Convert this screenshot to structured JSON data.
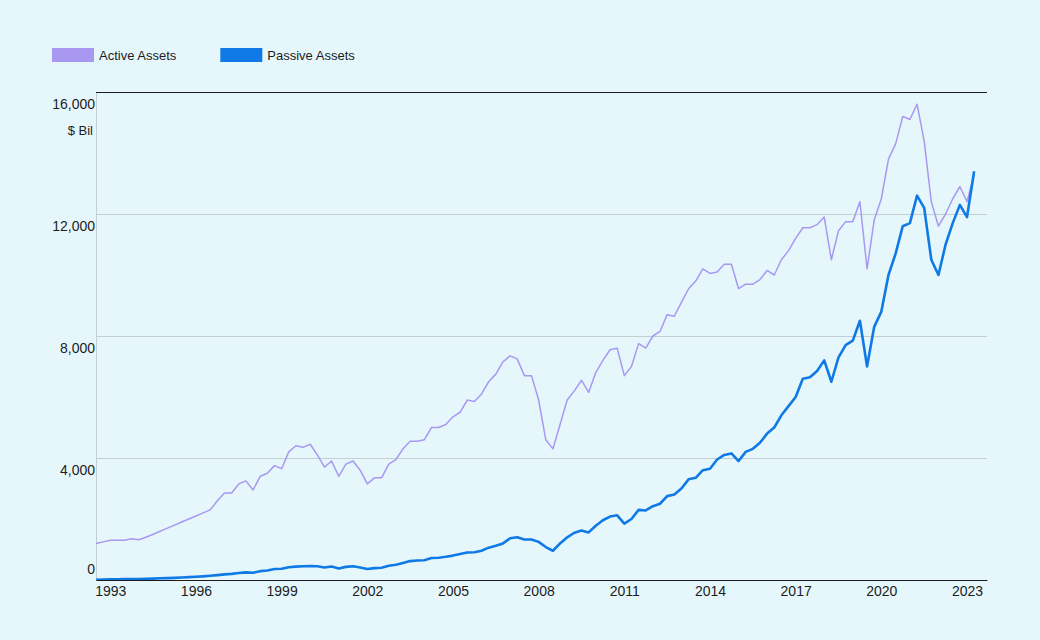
{
  "chart_data": {
    "type": "line",
    "ylabel": "$ Bil",
    "x": [
      1992.5,
      1992.75,
      1993,
      1993.25,
      1993.5,
      1993.75,
      1994,
      1994.25,
      1994.5,
      1994.75,
      1995,
      1995.25,
      1995.5,
      1995.75,
      1996,
      1996.25,
      1996.5,
      1996.75,
      1997,
      1997.25,
      1997.5,
      1997.75,
      1998,
      1998.25,
      1998.5,
      1998.75,
      1999,
      1999.25,
      1999.5,
      1999.75,
      2000,
      2000.25,
      2000.5,
      2000.75,
      2001,
      2001.25,
      2001.5,
      2001.75,
      2002,
      2002.25,
      2002.5,
      2002.75,
      2003,
      2003.25,
      2003.5,
      2003.75,
      2004,
      2004.25,
      2004.5,
      2004.75,
      2005,
      2005.25,
      2005.5,
      2005.75,
      2006,
      2006.25,
      2006.5,
      2006.75,
      2007,
      2007.25,
      2007.5,
      2007.75,
      2008,
      2008.25,
      2008.5,
      2008.75,
      2009,
      2009.25,
      2009.5,
      2009.75,
      2010,
      2010.25,
      2010.5,
      2010.75,
      2011,
      2011.25,
      2011.5,
      2011.75,
      2012,
      2012.25,
      2012.5,
      2012.75,
      2013,
      2013.25,
      2013.5,
      2013.75,
      2014,
      2014.25,
      2014.5,
      2014.75,
      2015,
      2015.25,
      2015.5,
      2015.75,
      2016,
      2016.25,
      2016.5,
      2016.75,
      2017,
      2017.25,
      2017.5,
      2017.75,
      2018,
      2018.25,
      2018.5,
      2018.75,
      2019,
      2019.25,
      2019.5,
      2019.75,
      2020,
      2020.25,
      2020.5,
      2020.75,
      2021,
      2021.25,
      2021.5,
      2021.75,
      2022,
      2022.25,
      2022.5,
      2022.75,
      2023,
      2023.25
    ],
    "series": [
      {
        "name": "Active Assets",
        "color": "#a898f2",
        "values": [
          1200,
          1250,
          1300,
          1300,
          1300,
          1350,
          1320,
          1400,
          1500,
          1600,
          1700,
          1800,
          1900,
          2000,
          2100,
          2200,
          2300,
          2600,
          2850,
          2850,
          3150,
          3250,
          2950,
          3400,
          3500,
          3750,
          3650,
          4200,
          4400,
          4350,
          4450,
          4100,
          3700,
          3900,
          3400,
          3800,
          3900,
          3600,
          3150,
          3350,
          3350,
          3800,
          3950,
          4300,
          4550,
          4550,
          4600,
          5000,
          5000,
          5100,
          5350,
          5500,
          5900,
          5850,
          6100,
          6500,
          6750,
          7150,
          7350,
          7250,
          6700,
          6700,
          5900,
          4600,
          4300,
          5100,
          5900,
          6200,
          6550,
          6150,
          6800,
          7200,
          7550,
          7600,
          6700,
          7000,
          7750,
          7600,
          8000,
          8150,
          8700,
          8650,
          9100,
          9550,
          9800,
          10200,
          10050,
          10100,
          10350,
          10350,
          9550,
          9700,
          9700,
          9850,
          10150,
          10000,
          10500,
          10800,
          11200,
          11550,
          11550,
          11650,
          11900,
          10500,
          11450,
          11750,
          11750,
          12400,
          10200,
          11800,
          12500,
          13800,
          14300,
          15200,
          15100,
          15600,
          14400,
          12400,
          11600,
          12000,
          12500,
          12900,
          12400,
          13300
        ]
      },
      {
        "name": "Passive Assets",
        "color": "#0f7ae5",
        "values": [
          10,
          15,
          20,
          25,
          30,
          35,
          35,
          40,
          45,
          55,
          60,
          70,
          80,
          95,
          105,
          120,
          140,
          160,
          185,
          200,
          230,
          250,
          240,
          290,
          310,
          360,
          370,
          420,
          440,
          450,
          460,
          450,
          410,
          440,
          380,
          430,
          450,
          410,
          360,
          390,
          400,
          470,
          500,
          560,
          620,
          640,
          650,
          720,
          730,
          760,
          800,
          850,
          900,
          910,
          960,
          1060,
          1120,
          1200,
          1370,
          1400,
          1330,
          1330,
          1250,
          1080,
          960,
          1200,
          1400,
          1550,
          1620,
          1560,
          1780,
          1960,
          2080,
          2120,
          1850,
          2000,
          2300,
          2280,
          2420,
          2500,
          2750,
          2800,
          3000,
          3300,
          3350,
          3600,
          3650,
          3950,
          4100,
          4150,
          3900,
          4200,
          4300,
          4500,
          4800,
          5000,
          5400,
          5700,
          6000,
          6600,
          6650,
          6850,
          7200,
          6500,
          7300,
          7700,
          7850,
          8500,
          7000,
          8300,
          8800,
          10000,
          10700,
          11600,
          11700,
          12600,
          12200,
          10500,
          10000,
          11000,
          11700,
          12300,
          11900,
          13400
        ]
      }
    ],
    "xlim": [
      1992.5,
      2023.7
    ],
    "xticks": [
      1993,
      1996,
      1999,
      2002,
      2005,
      2008,
      2011,
      2014,
      2017,
      2020,
      2023
    ],
    "ylim": [
      0,
      16000
    ],
    "yticks": [
      0,
      {
        "value": 4000,
        "label": "4,000"
      },
      {
        "value": 8000,
        "label": "8,000"
      },
      {
        "value": 12000,
        "label": "12,000"
      },
      {
        "value": 16000,
        "label": "16,000"
      }
    ],
    "grid": true,
    "legend": "top-left"
  }
}
